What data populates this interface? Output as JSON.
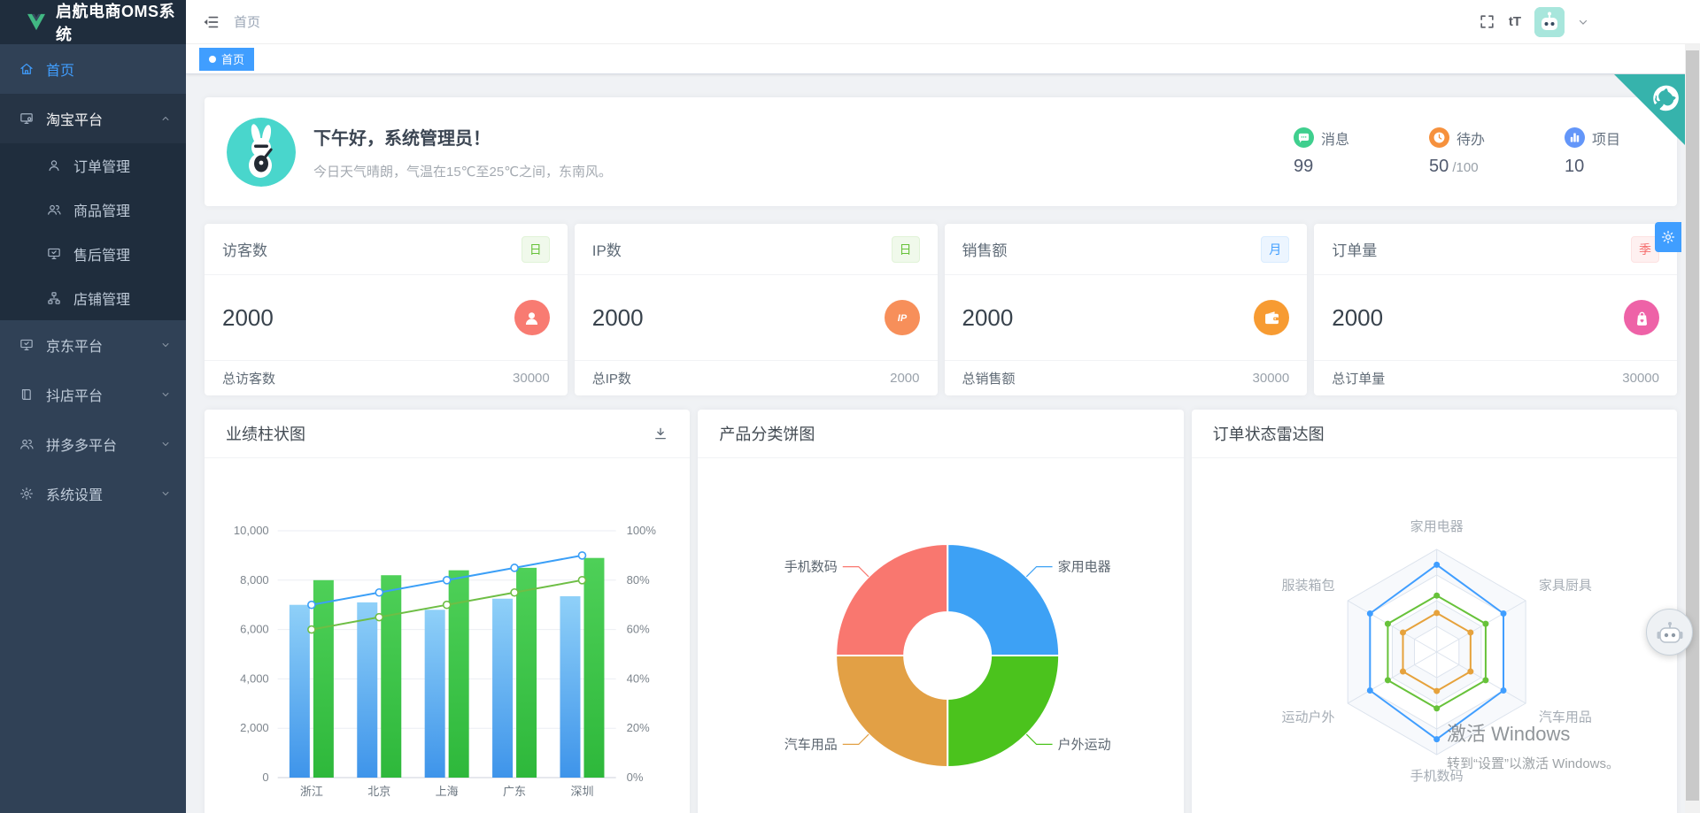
{
  "app": {
    "logo_text": "启航电商OMS系统"
  },
  "header": {
    "breadcrumb": "首页",
    "font_size_label": "tT"
  },
  "tabs": [
    {
      "label": "首页",
      "active": true
    }
  ],
  "sidebar": {
    "items": [
      {
        "id": "home",
        "label": "首页",
        "icon": "home-icon",
        "active": true
      },
      {
        "id": "taobao",
        "label": "淘宝平台",
        "icon": "platform-monitor-gear-icon",
        "expanded": true,
        "children": [
          {
            "id": "order",
            "label": "订单管理",
            "icon": "user-outline-icon"
          },
          {
            "id": "goods",
            "label": "商品管理",
            "icon": "users-icon"
          },
          {
            "id": "aftersale",
            "label": "售后管理",
            "icon": "monitor-check-icon"
          },
          {
            "id": "shop",
            "label": "店铺管理",
            "icon": "sitemap-icon"
          }
        ]
      },
      {
        "id": "jd",
        "label": "京东平台",
        "icon": "monitor-check-icon",
        "collapsed": true
      },
      {
        "id": "douyin",
        "label": "抖店平台",
        "icon": "book-icon",
        "collapsed": true
      },
      {
        "id": "pdd",
        "label": "拼多多平台",
        "icon": "users-icon",
        "collapsed": true
      },
      {
        "id": "settings",
        "label": "系统设置",
        "icon": "gear-icon",
        "collapsed": true
      }
    ]
  },
  "welcome": {
    "greeting": "下午好，系统管理员！",
    "weather": "今日天气晴朗，气温在15℃至25℃之间，东南风。",
    "stats": [
      {
        "label": "消息",
        "value": "99",
        "suffix": "",
        "icon": "message-icon",
        "color": "#3fcf8e"
      },
      {
        "label": "待办",
        "value": "50",
        "suffix": "/100",
        "icon": "clock-icon",
        "color": "#f6913d"
      },
      {
        "label": "项目",
        "value": "10",
        "suffix": "",
        "icon": "bar-chart-icon",
        "color": "#6396f9"
      }
    ]
  },
  "stat_cards": [
    {
      "title": "访客数",
      "badge": "日",
      "badge_type": "green",
      "value": "2000",
      "icon": "person-icon",
      "icon_color": "#f87b72",
      "footer_label": "总访客数",
      "footer_value": "30000"
    },
    {
      "title": "IP数",
      "badge": "日",
      "badge_type": "green",
      "value": "2000",
      "icon": "ip-icon",
      "icon_color": "#f78f5a",
      "footer_label": "总IP数",
      "footer_value": "2000"
    },
    {
      "title": "销售额",
      "badge": "月",
      "badge_type": "blue",
      "value": "2000",
      "icon": "wallet-icon",
      "icon_color": "#f79b32",
      "footer_label": "总销售额",
      "footer_value": "30000"
    },
    {
      "title": "订单量",
      "badge": "季",
      "badge_type": "red",
      "value": "2000",
      "icon": "shopping-bag-icon",
      "icon_color": "#ee62a7",
      "footer_label": "总订单量",
      "footer_value": "30000"
    }
  ],
  "chart_cards": [
    {
      "title": "业绩柱状图",
      "action_icon": "download-icon"
    },
    {
      "title": "产品分类饼图"
    },
    {
      "title": "订单状态雷达图"
    }
  ],
  "chart_data": [
    {
      "type": "bar",
      "title": "业绩柱状图",
      "categories": [
        "浙江",
        "北京",
        "上海",
        "广东",
        "深圳"
      ],
      "series": [
        {
          "name": "bar-blue",
          "kind": "bar",
          "values": [
            7000,
            7100,
            6800,
            7250,
            7350
          ],
          "color_top": "#8fd0f8",
          "color_bottom": "#3e94ea"
        },
        {
          "name": "bar-green",
          "kind": "bar",
          "values": [
            8000,
            8200,
            8400,
            8500,
            8900
          ],
          "color_top": "#4ed058",
          "color_bottom": "#2eb83b"
        },
        {
          "name": "line-blue",
          "kind": "line",
          "values": [
            7000,
            7500,
            8000,
            8500,
            9000
          ],
          "color": "#3b9ff7"
        },
        {
          "name": "line-green",
          "kind": "line",
          "values": [
            6000,
            6500,
            7000,
            7500,
            8000
          ],
          "color": "#6ebe45"
        }
      ],
      "y_left": {
        "min": 0,
        "max": 10000,
        "ticks": [
          "0",
          "2,000",
          "4,000",
          "6,000",
          "8,000",
          "10,000"
        ]
      },
      "y_right": {
        "min": 0,
        "max": 100,
        "ticks": [
          "0%",
          "20%",
          "40%",
          "60%",
          "80%",
          "100%"
        ]
      },
      "grid": true,
      "legend": "none"
    },
    {
      "type": "pie",
      "title": "产品分类饼图",
      "donut": true,
      "slices": [
        {
          "label": "家用电器",
          "value": 25,
          "color": "#3da1f5"
        },
        {
          "label": "户外运动",
          "value": 25,
          "color": "#4bc31d"
        },
        {
          "label": "汽车用品",
          "value": 25,
          "color": "#e2a045"
        },
        {
          "label": "手机数码",
          "value": 25,
          "color": "#f9776f"
        }
      ]
    },
    {
      "type": "radar",
      "title": "订单状态雷达图",
      "max": 100,
      "indicators": [
        "家用电器",
        "家具厨具",
        "汽车用品",
        "手机数码",
        "运动户外",
        "服装箱包"
      ],
      "series": [
        {
          "name": "radar-blue",
          "color": "#409eff",
          "values": [
            85,
            75,
            75,
            85,
            75,
            75
          ]
        },
        {
          "name": "radar-green",
          "color": "#67c23a",
          "values": [
            55,
            55,
            55,
            55,
            55,
            55
          ]
        },
        {
          "name": "radar-orange",
          "color": "#e6a23c",
          "values": [
            38,
            38,
            38,
            38,
            38,
            38
          ]
        }
      ]
    }
  ],
  "overlays": {
    "watermark_line1": "激活 Windows",
    "watermark_line2": "转到“设置”以激活 Windows。"
  },
  "colors": {
    "accent": "#409eff",
    "sidebar_bg": "#304156",
    "sidebar_sub_bg": "#1f2d3d",
    "page_bg": "#f0f2f5",
    "github_corner": "#36b3ac"
  }
}
